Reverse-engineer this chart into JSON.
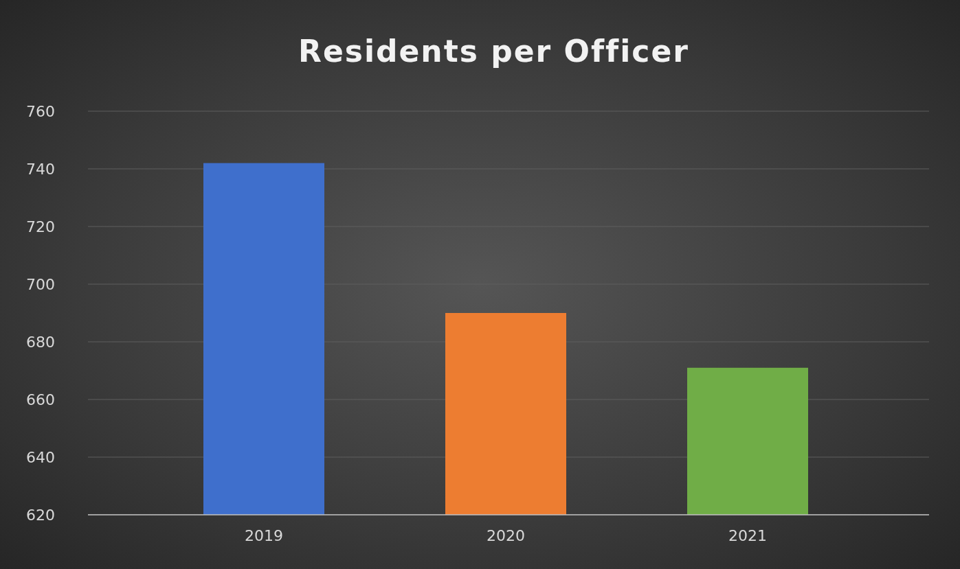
{
  "chart_data": {
    "type": "bar",
    "title": "Residents per Officer",
    "categories": [
      "2019",
      "2020",
      "2021"
    ],
    "values": [
      742,
      690,
      671
    ],
    "colors": [
      "#3f6fcc",
      "#ed7d31",
      "#70ad47"
    ],
    "ylim": [
      620,
      760
    ],
    "yticks": [
      620,
      640,
      660,
      680,
      700,
      720,
      740,
      760
    ],
    "grid": "y"
  }
}
